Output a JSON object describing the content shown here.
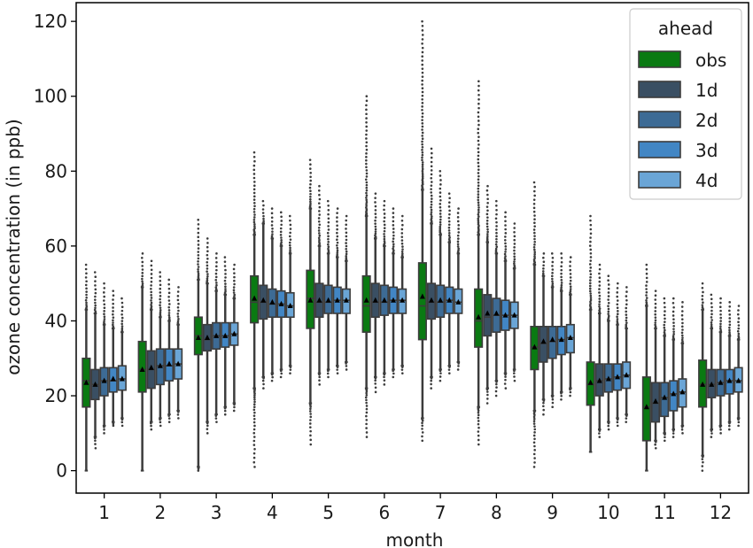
{
  "chart_data": {
    "type": "box",
    "title": "",
    "xlabel": "month",
    "ylabel": "ozone concentration (in ppb)",
    "ylim": [
      -6,
      125
    ],
    "yticks": [
      0,
      20,
      40,
      60,
      80,
      100,
      120
    ],
    "categories": [
      "1",
      "2",
      "3",
      "4",
      "5",
      "6",
      "7",
      "8",
      "9",
      "10",
      "11",
      "12"
    ],
    "legend": {
      "title": "ahead",
      "position": "top-right"
    },
    "series": [
      {
        "name": "obs",
        "color": "#0a7a12",
        "boxes": [
          {
            "q1": 17,
            "median": 24,
            "q3": 30,
            "mean": 23.5,
            "wlo": 0,
            "whi": 43,
            "fmin": 0,
            "fmax": 55
          },
          {
            "q1": 21,
            "median": 27,
            "q3": 34.5,
            "mean": 27,
            "wlo": 0,
            "whi": 49,
            "fmin": 0,
            "fmax": 58
          },
          {
            "q1": 31,
            "median": 36,
            "q3": 41,
            "mean": 35.5,
            "wlo": 1,
            "whi": 51,
            "fmin": 0,
            "fmax": 67
          },
          {
            "q1": 39.5,
            "median": 45,
            "q3": 52,
            "mean": 46,
            "wlo": 22,
            "whi": 63,
            "fmin": 1,
            "fmax": 85
          },
          {
            "q1": 38,
            "median": 46,
            "q3": 53.5,
            "mean": 45.5,
            "wlo": 18,
            "whi": 70,
            "fmin": 7,
            "fmax": 83
          },
          {
            "q1": 37,
            "median": 44,
            "q3": 52,
            "mean": 45.5,
            "wlo": 22,
            "whi": 68,
            "fmin": 9,
            "fmax": 100
          },
          {
            "q1": 35,
            "median": 44,
            "q3": 55.5,
            "mean": 46.5,
            "wlo": 14,
            "whi": 75,
            "fmin": 8,
            "fmax": 120
          },
          {
            "q1": 33,
            "median": 40,
            "q3": 48.5,
            "mean": 41,
            "wlo": 17,
            "whi": 63,
            "fmin": 7,
            "fmax": 104
          },
          {
            "q1": 27,
            "median": 33,
            "q3": 38.5,
            "mean": 33,
            "wlo": 16,
            "whi": 55,
            "fmin": 1,
            "fmax": 77
          },
          {
            "q1": 17.5,
            "median": 23,
            "q3": 29,
            "mean": 23.5,
            "wlo": 5,
            "whi": 43,
            "fmin": 5,
            "fmax": 68
          },
          {
            "q1": 8,
            "median": 17,
            "q3": 25,
            "mean": 17,
            "wlo": 0,
            "whi": 44,
            "fmin": 0,
            "fmax": 55
          },
          {
            "q1": 17,
            "median": 23,
            "q3": 29.5,
            "mean": 23,
            "wlo": 4,
            "whi": 43,
            "fmin": 0,
            "fmax": 50
          }
        ]
      },
      {
        "name": "1d",
        "color": "#3a4f63",
        "boxes": [
          {
            "q1": 19,
            "median": 23,
            "q3": 27,
            "mean": 23,
            "wlo": 9,
            "whi": 42,
            "fmin": 6,
            "fmax": 53
          },
          {
            "q1": 22,
            "median": 27,
            "q3": 32,
            "mean": 27.5,
            "wlo": 13,
            "whi": 43,
            "fmin": 11,
            "fmax": 56
          },
          {
            "q1": 32,
            "median": 35,
            "q3": 39,
            "mean": 35.5,
            "wlo": 13,
            "whi": 50,
            "fmin": 10,
            "fmax": 62
          },
          {
            "q1": 40.5,
            "median": 45,
            "q3": 49.5,
            "mean": 45.5,
            "wlo": 25,
            "whi": 66,
            "fmin": 22,
            "fmax": 72
          },
          {
            "q1": 41,
            "median": 45,
            "q3": 50,
            "mean": 45.5,
            "wlo": 26,
            "whi": 60,
            "fmin": 23,
            "fmax": 76
          },
          {
            "q1": 41,
            "median": 45,
            "q3": 50,
            "mean": 45.5,
            "wlo": 25,
            "whi": 62,
            "fmin": 21,
            "fmax": 74
          },
          {
            "q1": 40.5,
            "median": 45,
            "q3": 50,
            "mean": 45.5,
            "wlo": 25,
            "whi": 66,
            "fmin": 22,
            "fmax": 86
          },
          {
            "q1": 36,
            "median": 41,
            "q3": 47,
            "mean": 42,
            "wlo": 22,
            "whi": 61,
            "fmin": 18,
            "fmax": 76
          },
          {
            "q1": 29,
            "median": 34,
            "q3": 38.5,
            "mean": 34.5,
            "wlo": 19,
            "whi": 52,
            "fmin": 15,
            "fmax": 58
          },
          {
            "q1": 20,
            "median": 24,
            "q3": 28.5,
            "mean": 24,
            "wlo": 11,
            "whi": 42,
            "fmin": 9,
            "fmax": 55
          },
          {
            "q1": 13,
            "median": 18,
            "q3": 23.5,
            "mean": 18.5,
            "wlo": 8,
            "whi": 38,
            "fmin": 6,
            "fmax": 48
          },
          {
            "q1": 19.5,
            "median": 23,
            "q3": 27,
            "mean": 23,
            "wlo": 11,
            "whi": 38,
            "fmin": 9,
            "fmax": 47
          }
        ]
      },
      {
        "name": "2d",
        "color": "#3d6b95",
        "boxes": [
          {
            "q1": 20,
            "median": 24,
            "q3": 27.5,
            "mean": 24,
            "wlo": 12,
            "whi": 39,
            "fmin": 10,
            "fmax": 50
          },
          {
            "q1": 23,
            "median": 28,
            "q3": 32.5,
            "mean": 28,
            "wlo": 14,
            "whi": 41,
            "fmin": 12,
            "fmax": 53
          },
          {
            "q1": 32.5,
            "median": 36,
            "q3": 39.5,
            "mean": 36,
            "wlo": 15,
            "whi": 48,
            "fmin": 13,
            "fmax": 58
          },
          {
            "q1": 41,
            "median": 44.5,
            "q3": 48.5,
            "mean": 45,
            "wlo": 26,
            "whi": 62,
            "fmin": 24,
            "fmax": 70
          },
          {
            "q1": 42,
            "median": 45,
            "q3": 49.5,
            "mean": 45.5,
            "wlo": 27,
            "whi": 58,
            "fmin": 25,
            "fmax": 72
          },
          {
            "q1": 41.5,
            "median": 45,
            "q3": 49.5,
            "mean": 45.5,
            "wlo": 26,
            "whi": 60,
            "fmin": 23,
            "fmax": 72
          },
          {
            "q1": 41,
            "median": 45,
            "q3": 49.5,
            "mean": 45.5,
            "wlo": 27,
            "whi": 63,
            "fmin": 24,
            "fmax": 80
          },
          {
            "q1": 37,
            "median": 41.5,
            "q3": 46,
            "mean": 42,
            "wlo": 24,
            "whi": 58,
            "fmin": 20,
            "fmax": 72
          },
          {
            "q1": 30,
            "median": 34.5,
            "q3": 38.5,
            "mean": 35,
            "wlo": 20,
            "whi": 49,
            "fmin": 17,
            "fmax": 58
          },
          {
            "q1": 21,
            "median": 24.5,
            "q3": 28.5,
            "mean": 24.5,
            "wlo": 13,
            "whi": 40,
            "fmin": 11,
            "fmax": 52
          },
          {
            "q1": 14.5,
            "median": 19.5,
            "q3": 23.5,
            "mean": 19.5,
            "wlo": 10,
            "whi": 36,
            "fmin": 8,
            "fmax": 46
          },
          {
            "q1": 20,
            "median": 23.5,
            "q3": 27,
            "mean": 23.5,
            "wlo": 12,
            "whi": 37,
            "fmin": 10,
            "fmax": 46
          }
        ]
      },
      {
        "name": "3d",
        "color": "#4286c4",
        "boxes": [
          {
            "q1": 21,
            "median": 24,
            "q3": 27.5,
            "mean": 24.5,
            "wlo": 13,
            "whi": 38,
            "fmin": 12,
            "fmax": 48
          },
          {
            "q1": 24,
            "median": 28,
            "q3": 32.5,
            "mean": 28.5,
            "wlo": 15,
            "whi": 40,
            "fmin": 13,
            "fmax": 51
          },
          {
            "q1": 33,
            "median": 36,
            "q3": 39.5,
            "mean": 36,
            "wlo": 17,
            "whi": 47,
            "fmin": 15,
            "fmax": 57
          },
          {
            "q1": 41,
            "median": 44.5,
            "q3": 48,
            "mean": 44.5,
            "wlo": 27,
            "whi": 60,
            "fmin": 25,
            "fmax": 69
          },
          {
            "q1": 42,
            "median": 45.5,
            "q3": 49,
            "mean": 45.5,
            "wlo": 28,
            "whi": 57,
            "fmin": 26,
            "fmax": 70
          },
          {
            "q1": 42,
            "median": 45.5,
            "q3": 49,
            "mean": 45.5,
            "wlo": 27,
            "whi": 58,
            "fmin": 25,
            "fmax": 70
          },
          {
            "q1": 42,
            "median": 45.5,
            "q3": 49,
            "mean": 45.5,
            "wlo": 28,
            "whi": 61,
            "fmin": 26,
            "fmax": 74
          },
          {
            "q1": 37.5,
            "median": 41.5,
            "q3": 45.5,
            "mean": 41.5,
            "wlo": 26,
            "whi": 56,
            "fmin": 22,
            "fmax": 69
          },
          {
            "q1": 31,
            "median": 35,
            "q3": 38.5,
            "mean": 35,
            "wlo": 21,
            "whi": 48,
            "fmin": 19,
            "fmax": 58
          },
          {
            "q1": 21.5,
            "median": 25,
            "q3": 28.5,
            "mean": 25,
            "wlo": 14,
            "whi": 39,
            "fmin": 12,
            "fmax": 50
          },
          {
            "q1": 16,
            "median": 20.5,
            "q3": 24,
            "mean": 20.5,
            "wlo": 11,
            "whi": 35,
            "fmin": 9,
            "fmax": 46
          },
          {
            "q1": 20.5,
            "median": 24,
            "q3": 27,
            "mean": 24,
            "wlo": 13,
            "whi": 36,
            "fmin": 11,
            "fmax": 45
          }
        ]
      },
      {
        "name": "4d",
        "color": "#6aa5d6",
        "boxes": [
          {
            "q1": 21.5,
            "median": 24.5,
            "q3": 28,
            "mean": 24.5,
            "wlo": 14,
            "whi": 37,
            "fmin": 12,
            "fmax": 46
          },
          {
            "q1": 24.5,
            "median": 28.5,
            "q3": 32.5,
            "mean": 28.5,
            "wlo": 16,
            "whi": 39,
            "fmin": 14,
            "fmax": 49
          },
          {
            "q1": 33.5,
            "median": 36.5,
            "q3": 39.5,
            "mean": 36.5,
            "wlo": 18,
            "whi": 46,
            "fmin": 16,
            "fmax": 55
          },
          {
            "q1": 41,
            "median": 44,
            "q3": 47.5,
            "mean": 44,
            "wlo": 28,
            "whi": 58,
            "fmin": 26,
            "fmax": 68
          },
          {
            "q1": 42,
            "median": 45.5,
            "q3": 48.5,
            "mean": 45.5,
            "wlo": 29,
            "whi": 56,
            "fmin": 27,
            "fmax": 68
          },
          {
            "q1": 42,
            "median": 45.5,
            "q3": 48.5,
            "mean": 45.5,
            "wlo": 28,
            "whi": 57,
            "fmin": 26,
            "fmax": 68
          },
          {
            "q1": 42,
            "median": 45,
            "q3": 48.5,
            "mean": 45,
            "wlo": 29,
            "whi": 58,
            "fmin": 27,
            "fmax": 70
          },
          {
            "q1": 38,
            "median": 41.5,
            "q3": 45,
            "mean": 41.5,
            "wlo": 27,
            "whi": 54,
            "fmin": 24,
            "fmax": 66
          },
          {
            "q1": 31.5,
            "median": 35.5,
            "q3": 39,
            "mean": 35.5,
            "wlo": 22,
            "whi": 47,
            "fmin": 20,
            "fmax": 57
          },
          {
            "q1": 22,
            "median": 25.5,
            "q3": 29,
            "mean": 25.5,
            "wlo": 15,
            "whi": 38,
            "fmin": 13,
            "fmax": 49
          },
          {
            "q1": 17,
            "median": 21,
            "q3": 24.5,
            "mean": 21,
            "wlo": 12,
            "whi": 34,
            "fmin": 10,
            "fmax": 45
          },
          {
            "q1": 21,
            "median": 24,
            "q3": 27.5,
            "mean": 24,
            "wlo": 14,
            "whi": 35,
            "fmin": 12,
            "fmax": 44
          }
        ]
      }
    ]
  }
}
